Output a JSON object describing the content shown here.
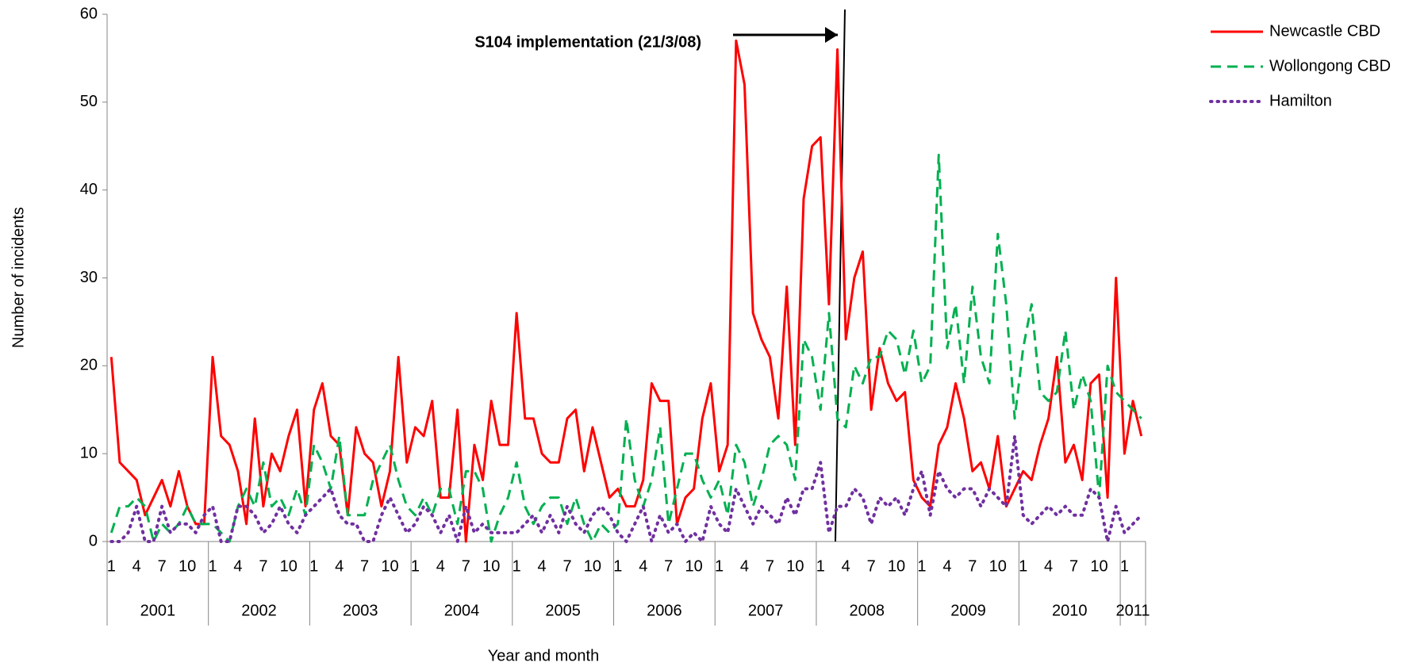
{
  "chart_data": {
    "type": "line",
    "x_label": "Year and month",
    "y_label": "Number of incidents",
    "annotation": "S104 implementation (21/3/08)",
    "categories": [
      "1",
      null,
      null,
      "4",
      null,
      null,
      "7",
      null,
      null,
      "10",
      null,
      null,
      "1",
      null,
      null,
      "4",
      null,
      null,
      "7",
      null,
      null,
      "10",
      null,
      null,
      "1",
      null,
      null,
      "4",
      null,
      null,
      "7",
      null,
      null,
      "10",
      null,
      null,
      "1",
      null,
      null,
      "4",
      null,
      null,
      "7",
      null,
      null,
      "10",
      null,
      null,
      "1",
      null,
      null,
      "4",
      null,
      null,
      "7",
      null,
      null,
      "10",
      null,
      null,
      "1",
      null,
      null,
      "4",
      null,
      null,
      "7",
      null,
      null,
      "10",
      null,
      null,
      "1",
      null,
      null,
      "4",
      null,
      null,
      "7",
      null,
      null,
      "10",
      null,
      null,
      "1",
      null,
      null,
      "4",
      null,
      null,
      "7",
      null,
      null,
      "10",
      null,
      null,
      "1",
      null,
      null,
      "4",
      null,
      null,
      "7",
      null,
      null,
      "10",
      null,
      null,
      "1",
      null,
      null,
      "4",
      null,
      null,
      "7",
      null,
      null,
      "10",
      null,
      null,
      "1",
      null,
      null
    ],
    "year_groups": [
      {
        "name": "2001",
        "months": 12
      },
      {
        "name": "2002",
        "months": 12
      },
      {
        "name": "2003",
        "months": 12
      },
      {
        "name": "2004",
        "months": 12
      },
      {
        "name": "2005",
        "months": 12
      },
      {
        "name": "2006",
        "months": 12
      },
      {
        "name": "2007",
        "months": 12
      },
      {
        "name": "2008",
        "months": 12
      },
      {
        "name": "2009",
        "months": 12
      },
      {
        "name": "2010",
        "months": 12
      },
      {
        "name": "2011",
        "months": 3
      }
    ],
    "series": [
      {
        "name": "Newcastle CBD",
        "color": "#ff0000",
        "style": "solid",
        "values": [
          21,
          9,
          8,
          7,
          3,
          5,
          7,
          4,
          8,
          4,
          2,
          2,
          21,
          12,
          11,
          8,
          2,
          14,
          4,
          10,
          8,
          12,
          15,
          4,
          15,
          18,
          12,
          11,
          3,
          13,
          10,
          9,
          4,
          8,
          21,
          9,
          13,
          12,
          16,
          5,
          5,
          15,
          0,
          11,
          7,
          16,
          11,
          11,
          26,
          14,
          14,
          10,
          9,
          9,
          14,
          15,
          8,
          13,
          9,
          5,
          6,
          4,
          4,
          7,
          18,
          16,
          16,
          2,
          5,
          6,
          14,
          18,
          8,
          11,
          57,
          52,
          26,
          23,
          21,
          14,
          29,
          11,
          39,
          45,
          46,
          27,
          56,
          23,
          30,
          33,
          15,
          22,
          18,
          16,
          17,
          7,
          5,
          4,
          11,
          13,
          18,
          14,
          8,
          9,
          6,
          12,
          4,
          6,
          8,
          7,
          11,
          14,
          21,
          9,
          11,
          7,
          18,
          19,
          5,
          30,
          10,
          16,
          12
        ]
      },
      {
        "name": "Wollongong CBD",
        "color": "#00b050",
        "style": "dashed",
        "values": [
          1,
          4,
          4,
          5,
          4,
          0,
          2,
          1,
          2,
          4,
          2,
          2,
          2,
          1,
          0,
          4,
          6,
          4,
          9,
          4,
          5,
          3,
          6,
          3,
          11,
          9,
          6,
          12,
          3,
          3,
          3,
          7,
          9,
          11,
          7,
          4,
          3,
          5,
          3,
          6,
          6,
          2,
          8,
          8,
          6,
          0,
          3,
          5,
          9,
          4,
          2,
          4,
          5,
          5,
          2,
          5,
          2,
          0,
          2,
          1,
          2,
          14,
          7,
          4,
          7,
          13,
          2,
          6,
          10,
          10,
          7,
          5,
          7,
          3,
          11,
          9,
          4,
          7,
          11,
          12,
          11,
          7,
          23,
          21,
          15,
          26,
          14,
          13,
          20,
          18,
          21,
          21,
          24,
          23,
          19,
          24,
          18,
          20,
          44,
          22,
          27,
          18,
          29,
          21,
          18,
          35,
          27,
          14,
          22,
          27,
          17,
          16,
          17,
          24,
          15,
          19,
          16,
          5,
          20,
          17,
          16,
          15,
          14
        ]
      },
      {
        "name": "Hamilton",
        "color": "#7030a0",
        "style": "dotted",
        "values": [
          0,
          0,
          1,
          4,
          0,
          0,
          4,
          1,
          2,
          2,
          1,
          3,
          4,
          0,
          0,
          4,
          4,
          3,
          1,
          2,
          4,
          2,
          1,
          3,
          4,
          5,
          6,
          3,
          2,
          2,
          0,
          0,
          3,
          5,
          3,
          1,
          2,
          4,
          3,
          1,
          3,
          0,
          4,
          1,
          2,
          1,
          1,
          1,
          1,
          2,
          3,
          1,
          3,
          1,
          4,
          2,
          1,
          3,
          4,
          3,
          1,
          0,
          2,
          4,
          0,
          3,
          1,
          2,
          0,
          1,
          0,
          4,
          2,
          1,
          6,
          4,
          2,
          4,
          3,
          2,
          5,
          3,
          6,
          6,
          9,
          1,
          4,
          4,
          6,
          5,
          2,
          5,
          4,
          5,
          3,
          6,
          8,
          3,
          8,
          6,
          5,
          6,
          6,
          4,
          6,
          5,
          4,
          12,
          3,
          2,
          3,
          4,
          3,
          4,
          3,
          3,
          6,
          5,
          0,
          4,
          1,
          2,
          3
        ]
      }
    ],
    "ylim": [
      0,
      60
    ],
    "yticks": [
      0,
      10,
      20,
      30,
      40,
      50,
      60
    ],
    "grid": false,
    "legend": "top-right"
  }
}
